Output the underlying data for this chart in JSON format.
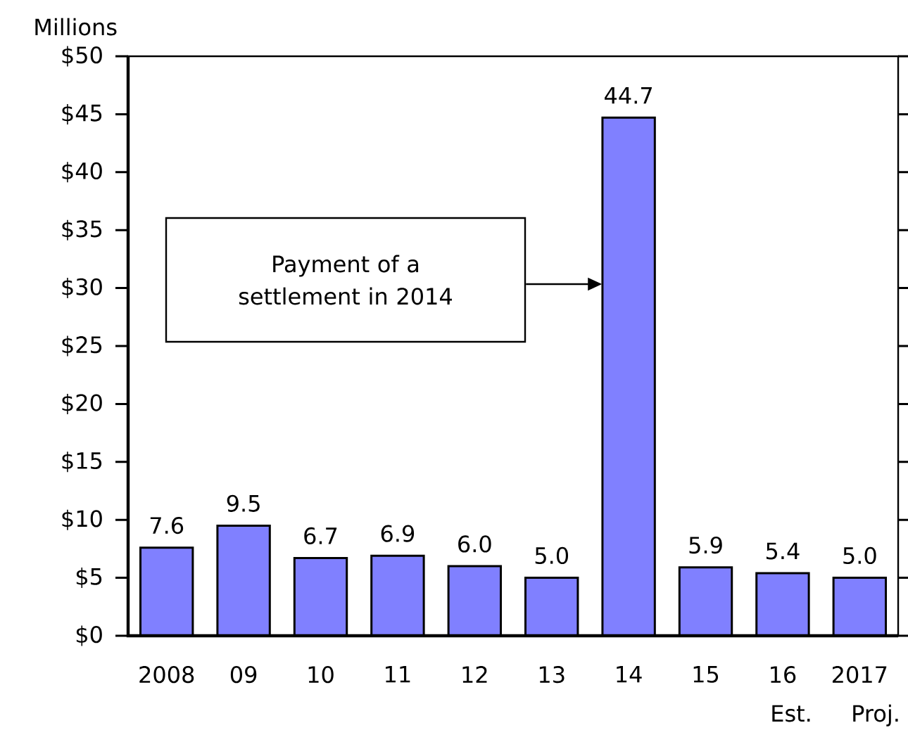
{
  "chart_data": {
    "type": "bar",
    "ylabel": "Millions",
    "categories": [
      "2008",
      "09",
      "10",
      "11",
      "12",
      "13",
      "14",
      "15",
      "16",
      "2017"
    ],
    "values": [
      7.6,
      9.5,
      6.7,
      6.9,
      6.0,
      5.0,
      44.7,
      5.9,
      5.4,
      5.0
    ],
    "value_labels": [
      "7.6",
      "9.5",
      "6.7",
      "6.9",
      "6.0",
      "5.0",
      "44.7",
      "5.9",
      "5.4",
      "5.0"
    ],
    "color": "#8080ff",
    "ylim": [
      0,
      50
    ],
    "yticks": [
      {
        "value": 0,
        "label": "$0"
      },
      {
        "value": 5,
        "label": "$5"
      },
      {
        "value": 10,
        "label": "$10"
      },
      {
        "value": 15,
        "label": "$15"
      },
      {
        "value": 20,
        "label": "$20"
      },
      {
        "value": 25,
        "label": "$25"
      },
      {
        "value": 30,
        "label": "$30"
      },
      {
        "value": 35,
        "label": "$35"
      },
      {
        "value": 40,
        "label": "$40"
      },
      {
        "value": 45,
        "label": "$45"
      },
      {
        "value": 50,
        "label": "$50"
      }
    ],
    "annotations": [
      "Payment of a settlement in 2014",
      "Est.",
      "Proj."
    ]
  }
}
